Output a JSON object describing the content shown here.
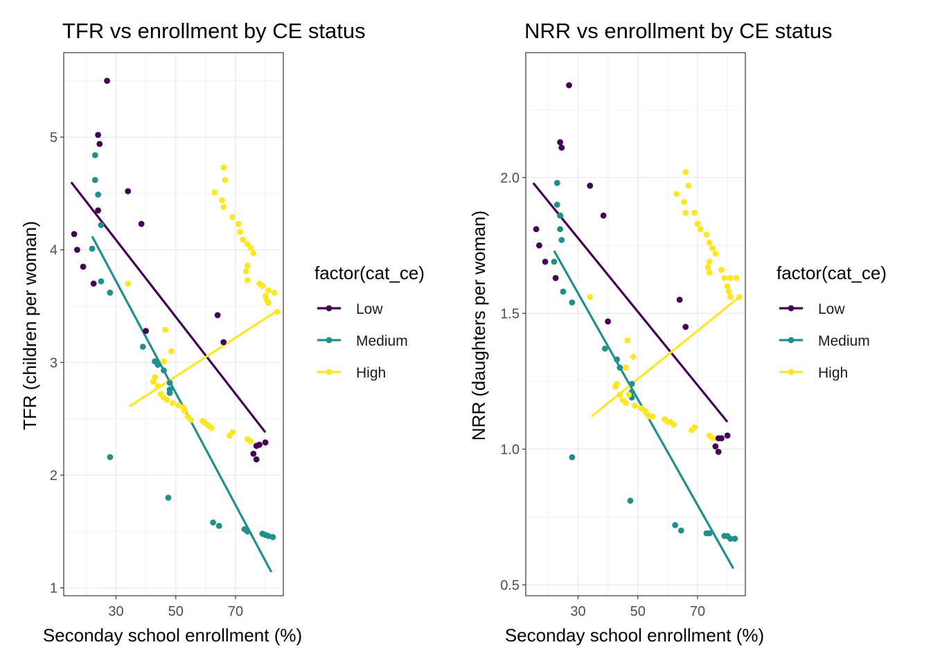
{
  "colors": {
    "Low": "#440154",
    "Medium": "#21908C",
    "High": "#FDE725"
  },
  "chart_data": [
    {
      "type": "scatter",
      "title": "TFR vs enrollment by CE status",
      "xlabel": "Seconday school enrollment (%)",
      "ylabel": "TFR (children per woman)",
      "xlim": [
        12.5,
        86
      ],
      "ylim": [
        0.93,
        5.75
      ],
      "xticks": [
        30,
        50,
        70
      ],
      "yticks": [
        1,
        2,
        3,
        4,
        5
      ],
      "grid": true,
      "legend": {
        "title": "factor(cat_ce)",
        "entries": [
          "Low",
          "Medium",
          "High"
        ],
        "position": "right"
      },
      "series": [
        {
          "name": "Low",
          "points": [
            [
              27,
              5.5
            ],
            [
              24,
              5.02
            ],
            [
              24.5,
              4.94
            ],
            [
              34,
              4.52
            ],
            [
              38.5,
              4.23
            ],
            [
              16,
              4.14
            ],
            [
              17,
              4.0
            ],
            [
              19,
              3.85
            ],
            [
              22.5,
              3.7
            ],
            [
              24,
              4.35
            ],
            [
              40,
              3.28
            ],
            [
              64,
              3.42
            ],
            [
              66,
              3.18
            ],
            [
              77,
              2.26
            ],
            [
              78,
              2.27
            ],
            [
              80,
              2.29
            ],
            [
              76,
              2.19
            ],
            [
              77,
              2.14
            ]
          ],
          "fit": [
            [
              15,
              4.6
            ],
            [
              80,
              2.38
            ]
          ]
        },
        {
          "name": "Medium",
          "points": [
            [
              23,
              4.84
            ],
            [
              23,
              4.62
            ],
            [
              24,
              4.49
            ],
            [
              25,
              4.22
            ],
            [
              22,
              4.01
            ],
            [
              25,
              3.72
            ],
            [
              28,
              3.62
            ],
            [
              39,
              3.14
            ],
            [
              43,
              3.01
            ],
            [
              44,
              2.98
            ],
            [
              46,
              2.93
            ],
            [
              48,
              2.82
            ],
            [
              48,
              2.76
            ],
            [
              48,
              2.73
            ],
            [
              28,
              2.16
            ],
            [
              47.5,
              1.8
            ],
            [
              62.5,
              1.58
            ],
            [
              64.5,
              1.55
            ],
            [
              73,
              1.52
            ],
            [
              74,
              1.5
            ],
            [
              79,
              1.48
            ],
            [
              80,
              1.47
            ],
            [
              81,
              1.46
            ],
            [
              82.5,
              1.45
            ]
          ],
          "fit": [
            [
              22,
              4.12
            ],
            [
              82,
              1.14
            ]
          ]
        },
        {
          "name": "High",
          "points": [
            [
              66,
              4.73
            ],
            [
              66.5,
              4.62
            ],
            [
              63,
              4.51
            ],
            [
              65.5,
              4.44
            ],
            [
              66,
              4.38
            ],
            [
              69,
              4.29
            ],
            [
              71,
              4.23
            ],
            [
              71.5,
              4.16
            ],
            [
              72.5,
              4.09
            ],
            [
              74,
              4.05
            ],
            [
              75,
              4.02
            ],
            [
              76,
              3.97
            ],
            [
              74,
              3.86
            ],
            [
              73.5,
              3.81
            ],
            [
              74,
              3.73
            ],
            [
              78,
              3.7
            ],
            [
              79,
              3.68
            ],
            [
              81,
              3.64
            ],
            [
              80,
              3.59
            ],
            [
              80.5,
              3.55
            ],
            [
              81,
              3.53
            ],
            [
              83,
              3.62
            ],
            [
              84,
              3.45
            ],
            [
              34,
              3.7
            ],
            [
              46.5,
              3.29
            ],
            [
              48.5,
              3.1
            ],
            [
              46,
              3.01
            ],
            [
              43,
              2.87
            ],
            [
              44,
              2.79
            ],
            [
              42.5,
              2.83
            ],
            [
              45,
              2.72
            ],
            [
              46,
              2.69
            ],
            [
              47,
              2.67
            ],
            [
              49,
              2.64
            ],
            [
              51,
              2.62
            ],
            [
              52.5,
              2.6
            ],
            [
              53,
              2.57
            ],
            [
              54,
              2.52
            ],
            [
              55,
              2.49
            ],
            [
              59,
              2.48
            ],
            [
              60,
              2.46
            ],
            [
              61,
              2.44
            ],
            [
              62,
              2.42
            ],
            [
              68,
              2.35
            ],
            [
              69,
              2.38
            ],
            [
              74,
              2.32
            ],
            [
              75,
              2.3
            ]
          ],
          "fit": [
            [
              34.5,
              2.61
            ],
            [
              84,
              3.46
            ]
          ]
        }
      ]
    },
    {
      "type": "scatter",
      "title": "NRR vs enrollment by CE status",
      "xlabel": "Seconday school enrollment (%)",
      "ylabel": "NRR (daughters per woman)",
      "xlim": [
        12.5,
        86
      ],
      "ylim": [
        0.46,
        2.46
      ],
      "xticks": [
        30,
        50,
        70
      ],
      "yticks": [
        0.5,
        1.0,
        1.5,
        2.0
      ],
      "ytick_labels": [
        "0.5",
        "1.0",
        "1.5",
        "2.0"
      ],
      "grid": true,
      "legend": {
        "title": "factor(cat_ce)",
        "entries": [
          "Low",
          "Medium",
          "High"
        ],
        "position": "right"
      },
      "series": [
        {
          "name": "Low",
          "points": [
            [
              27,
              2.34
            ],
            [
              24,
              2.13
            ],
            [
              24.5,
              2.11
            ],
            [
              34,
              1.97
            ],
            [
              38.5,
              1.86
            ],
            [
              16,
              1.81
            ],
            [
              17,
              1.75
            ],
            [
              19,
              1.69
            ],
            [
              22.5,
              1.63
            ],
            [
              24,
              1.86
            ],
            [
              40,
              1.47
            ],
            [
              64,
              1.55
            ],
            [
              66,
              1.45
            ],
            [
              77,
              1.04
            ],
            [
              78,
              1.04
            ],
            [
              80,
              1.05
            ],
            [
              76,
              1.01
            ],
            [
              77,
              0.99
            ]
          ],
          "fit": [
            [
              15,
              1.98
            ],
            [
              80,
              1.1
            ]
          ]
        },
        {
          "name": "Medium",
          "points": [
            [
              23,
              1.98
            ],
            [
              23,
              1.9
            ],
            [
              24,
              1.86
            ],
            [
              24,
              1.81
            ],
            [
              24.5,
              1.77
            ],
            [
              22,
              1.69
            ],
            [
              25,
              1.58
            ],
            [
              28,
              1.54
            ],
            [
              39,
              1.37
            ],
            [
              43,
              1.33
            ],
            [
              44,
              1.3
            ],
            [
              46,
              1.3
            ],
            [
              48,
              1.24
            ],
            [
              48,
              1.21
            ],
            [
              48,
              1.19
            ],
            [
              28,
              0.97
            ],
            [
              47.5,
              0.81
            ],
            [
              62.5,
              0.72
            ],
            [
              64.5,
              0.7
            ],
            [
              73,
              0.69
            ],
            [
              74,
              0.69
            ],
            [
              79,
              0.68
            ],
            [
              80,
              0.68
            ],
            [
              81,
              0.67
            ],
            [
              82.5,
              0.67
            ]
          ],
          "fit": [
            [
              22,
              1.73
            ],
            [
              82,
              0.56
            ]
          ]
        },
        {
          "name": "High",
          "points": [
            [
              66,
              2.02
            ],
            [
              67,
              1.97
            ],
            [
              63,
              1.94
            ],
            [
              65.5,
              1.91
            ],
            [
              66,
              1.87
            ],
            [
              69,
              1.87
            ],
            [
              70,
              1.83
            ],
            [
              71,
              1.81
            ],
            [
              73,
              1.79
            ],
            [
              74,
              1.76
            ],
            [
              75,
              1.74
            ],
            [
              76,
              1.72
            ],
            [
              74,
              1.69
            ],
            [
              73.5,
              1.67
            ],
            [
              74,
              1.65
            ],
            [
              78,
              1.66
            ],
            [
              79,
              1.63
            ],
            [
              81,
              1.63
            ],
            [
              80,
              1.6
            ],
            [
              80.5,
              1.58
            ],
            [
              81,
              1.56
            ],
            [
              83,
              1.63
            ],
            [
              84,
              1.56
            ],
            [
              34,
              1.56
            ],
            [
              46.5,
              1.4
            ],
            [
              48.5,
              1.34
            ],
            [
              46,
              1.3
            ],
            [
              43,
              1.24
            ],
            [
              44,
              1.2
            ],
            [
              42.5,
              1.23
            ],
            [
              45,
              1.18
            ],
            [
              46,
              1.17
            ],
            [
              47,
              1.2
            ],
            [
              49,
              1.16
            ],
            [
              51,
              1.15
            ],
            [
              52.5,
              1.14
            ],
            [
              53,
              1.13
            ],
            [
              54,
              1.12
            ],
            [
              55,
              1.12
            ],
            [
              59,
              1.11
            ],
            [
              60,
              1.1
            ],
            [
              61,
              1.1
            ],
            [
              62,
              1.09
            ],
            [
              68,
              1.07
            ],
            [
              69,
              1.08
            ],
            [
              74,
              1.05
            ],
            [
              75,
              1.04
            ]
          ],
          "fit": [
            [
              34.5,
              1.12
            ],
            [
              84,
              1.56
            ]
          ]
        }
      ]
    }
  ]
}
